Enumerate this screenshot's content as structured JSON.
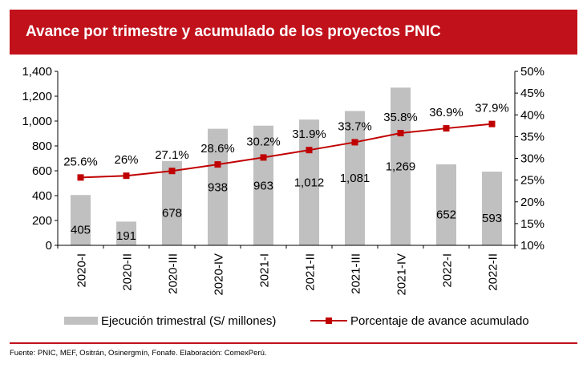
{
  "header": {
    "title": "Avance por trimestre y acumulado de los proyectos PNIC"
  },
  "footer": {
    "source": "Fuente: PNIC, MEF, Ositrán, Osinergmín, Fonafe. Elaboración: ComexPerú."
  },
  "colors": {
    "brand_red": "#c1121c",
    "bar_gray": "#c0c0c0",
    "line_red": "#c00000"
  },
  "chart_data": {
    "type": "bar",
    "title": "Avance por trimestre y acumulado de los proyectos PNIC",
    "categories": [
      "2020-I",
      "2020-II",
      "2020-III",
      "2020-IV",
      "2021-I",
      "2021-II",
      "2021-III",
      "2021-IV",
      "2022-I",
      "2022-II"
    ],
    "series": [
      {
        "name": "Ejecución trimestral (S/ millones)",
        "type": "bar",
        "axis": "left",
        "values": [
          405,
          191,
          678,
          938,
          963,
          1012,
          1081,
          1269,
          652,
          593
        ],
        "labels": [
          "405",
          "191",
          "678",
          "938",
          "963",
          "1,012",
          "1,081",
          "1,269",
          "652",
          "593"
        ]
      },
      {
        "name": "Porcentaje de avance acumulado",
        "type": "line",
        "axis": "right",
        "values": [
          25.6,
          26.0,
          27.1,
          28.6,
          30.2,
          31.9,
          33.7,
          35.8,
          36.9,
          37.9
        ],
        "labels": [
          "25.6%",
          "26%",
          "27.1%",
          "28.6%",
          "30.2%",
          "31.9%",
          "33.7%",
          "35.8%",
          "36.9%",
          "37.9%"
        ]
      }
    ],
    "y_left": {
      "min": 0,
      "max": 1400,
      "ticks": [
        0,
        200,
        400,
        600,
        800,
        1000,
        1200,
        1400
      ],
      "tick_labels": [
        "0",
        "200",
        "400",
        "600",
        "800",
        "1,000",
        "1,200",
        "1,400"
      ]
    },
    "y_right": {
      "min": 10,
      "max": 50,
      "ticks": [
        10,
        15,
        20,
        25,
        30,
        35,
        40,
        45,
        50
      ],
      "tick_labels": [
        "10%",
        "15%",
        "20%",
        "25%",
        "30%",
        "35%",
        "40%",
        "45%",
        "50%"
      ]
    },
    "legend": {
      "position": "bottom",
      "bar_label": "Ejecución trimestral (S/ millones)",
      "line_label": "Porcentaje de avance acumulado"
    }
  }
}
